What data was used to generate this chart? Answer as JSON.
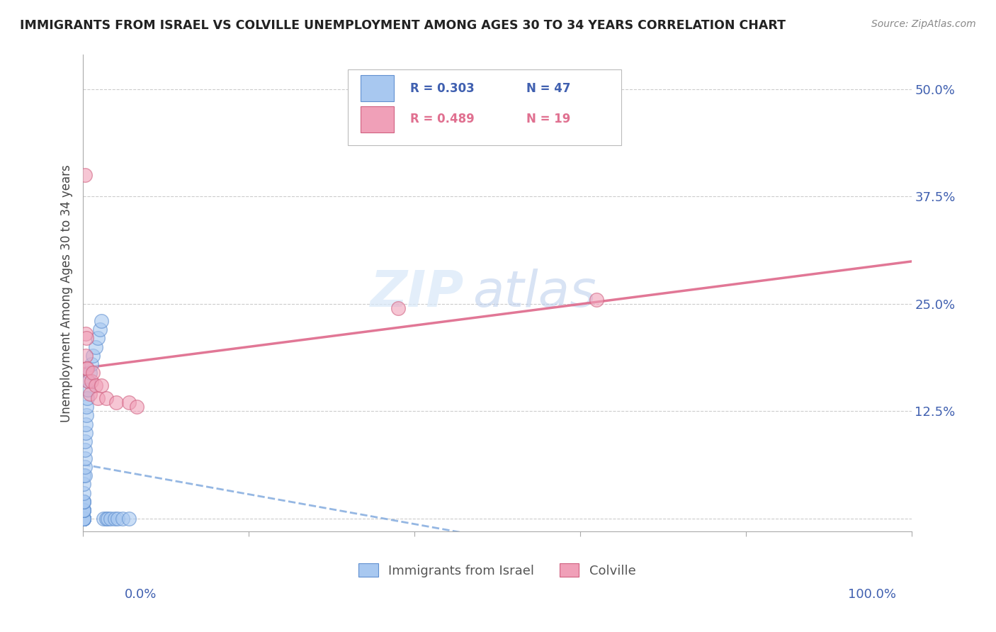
{
  "title": "IMMIGRANTS FROM ISRAEL VS COLVILLE UNEMPLOYMENT AMONG AGES 30 TO 34 YEARS CORRELATION CHART",
  "source": "Source: ZipAtlas.com",
  "ylabel": "Unemployment Among Ages 30 to 34 years",
  "ytick_values": [
    0.0,
    0.125,
    0.25,
    0.375,
    0.5
  ],
  "ytick_labels": [
    "",
    "12.5%",
    "25.0%",
    "37.5%",
    "50.0%"
  ],
  "xlim": [
    0.0,
    1.0
  ],
  "ylim": [
    -0.015,
    0.54
  ],
  "color_israel": "#a8c8f0",
  "color_colville": "#f0a0b8",
  "color_israel_edge": "#6090d0",
  "color_colville_edge": "#d06080",
  "color_israel_line": "#8ab0e0",
  "color_colville_line": "#e07090",
  "color_axis_text": "#4060b0",
  "color_ytick_text": "#4060b0",
  "background": "#ffffff",
  "watermark1": "ZIP",
  "watermark2": "atlas",
  "watermark1_color": "#d0ddf0",
  "watermark2_color": "#b8cce8",
  "israel_x": [
    0.001,
    0.001,
    0.001,
    0.001,
    0.001,
    0.001,
    0.001,
    0.001,
    0.001,
    0.001,
    0.001,
    0.001,
    0.001,
    0.001,
    0.001,
    0.001,
    0.001,
    0.001,
    0.001,
    0.001,
    0.002,
    0.002,
    0.002,
    0.002,
    0.002,
    0.003,
    0.003,
    0.004,
    0.004,
    0.005,
    0.006,
    0.007,
    0.008,
    0.01,
    0.012,
    0.015,
    0.018,
    0.02,
    0.022,
    0.025,
    0.028,
    0.03,
    0.033,
    0.038,
    0.042,
    0.048,
    0.055
  ],
  "israel_y": [
    0.0,
    0.0,
    0.0,
    0.0,
    0.0,
    0.0,
    0.0,
    0.0,
    0.0,
    0.0,
    0.01,
    0.01,
    0.01,
    0.01,
    0.02,
    0.02,
    0.02,
    0.03,
    0.04,
    0.05,
    0.05,
    0.06,
    0.07,
    0.08,
    0.09,
    0.1,
    0.11,
    0.12,
    0.13,
    0.14,
    0.15,
    0.16,
    0.17,
    0.18,
    0.19,
    0.2,
    0.21,
    0.22,
    0.23,
    0.0,
    0.0,
    0.0,
    0.0,
    0.0,
    0.0,
    0.0,
    0.0
  ],
  "colville_x": [
    0.002,
    0.003,
    0.003,
    0.004,
    0.004,
    0.005,
    0.006,
    0.008,
    0.01,
    0.012,
    0.015,
    0.018,
    0.022,
    0.028,
    0.04,
    0.055,
    0.065,
    0.38,
    0.62
  ],
  "colville_y": [
    0.4,
    0.215,
    0.19,
    0.175,
    0.21,
    0.175,
    0.16,
    0.145,
    0.16,
    0.17,
    0.155,
    0.14,
    0.155,
    0.14,
    0.135,
    0.135,
    0.13,
    0.245,
    0.255
  ],
  "legend_r1": "R = 0.303",
  "legend_n1": "N = 47",
  "legend_r2": "R = 0.489",
  "legend_n2": "N = 19",
  "legend1_label": "Immigrants from Israel",
  "legend2_label": "Colville"
}
